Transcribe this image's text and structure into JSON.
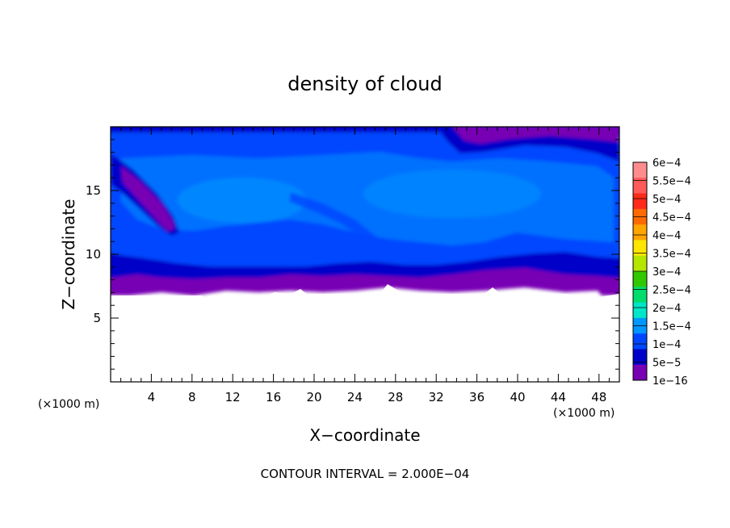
{
  "chart_data": {
    "type": "heatmap",
    "title": "density of cloud",
    "xlabel": "X−coordinate",
    "ylabel": "Z−coordinate",
    "x_unit": "(×1000 m)",
    "z_unit": "(×1000 m)",
    "xlim": [
      0,
      50
    ],
    "ylim": [
      0,
      20
    ],
    "x_ticks": [
      4,
      8,
      12,
      16,
      20,
      24,
      28,
      32,
      36,
      40,
      44,
      48
    ],
    "x_tick_labels": [
      "4",
      "8",
      "12",
      "16",
      "20",
      "24",
      "28",
      "32",
      "36",
      "40",
      "44",
      "48"
    ],
    "y_ticks": [
      5,
      10,
      15
    ],
    "y_tick_labels": [
      "5",
      "10",
      "15"
    ],
    "grid": false,
    "legend": "colorbar-right",
    "contour_interval_label": "CONTOUR INTERVAL = 2.000E−04",
    "colorbar": {
      "labels": [
        "6e−4",
        "5.5e−4",
        "5e−4",
        "4.5e−4",
        "4e−4",
        "3.5e−4",
        "3e−4",
        "2.5e−4",
        "2e−4",
        "1.5e−4",
        "1e−4",
        "5e−5",
        "1e−16"
      ],
      "colors": [
        "#ff8c8c",
        "#ff5a5a",
        "#ff2a1a",
        "#ff6a00",
        "#ffa500",
        "#ffe600",
        "#b4e600",
        "#32c800",
        "#00dc6e",
        "#00e6c8",
        "#0096ff",
        "#0046ff",
        "#0000c8",
        "#7800b4"
      ]
    },
    "field_description_values": {
      "cloud_base_z": 7,
      "cloud_top_z": 19.8,
      "band_low_density_z": [
        7,
        8.5
      ],
      "max_density_region": "1e−4 to 1.5e−4"
    }
  }
}
